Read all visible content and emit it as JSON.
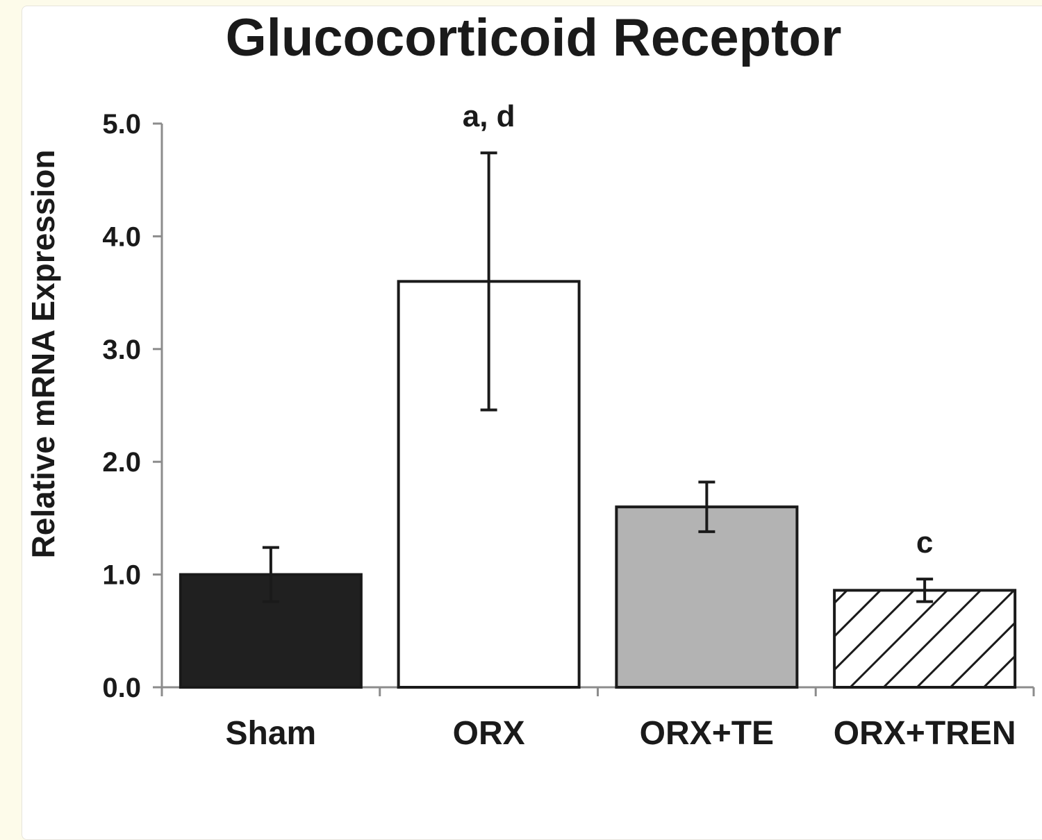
{
  "chart_data": {
    "type": "bar",
    "title": "Glucocorticoid Receptor",
    "xlabel": "",
    "ylabel": "Relative mRNA Expression",
    "ylim": [
      0,
      5
    ],
    "yticks": [
      "0.0",
      "1.0",
      "2.0",
      "3.0",
      "4.0",
      "5.0"
    ],
    "grid": false,
    "categories": [
      "Sham",
      "ORX",
      "ORX+TE",
      "ORX+TREN"
    ],
    "values": [
      1.0,
      3.6,
      1.6,
      0.86
    ],
    "errors": [
      0.24,
      1.14,
      0.22,
      0.1
    ],
    "annotations": [
      "",
      "a, d",
      "",
      "c"
    ],
    "fills": [
      "#202020",
      "#ffffff",
      "#b3b3b3",
      "hatch"
    ]
  }
}
